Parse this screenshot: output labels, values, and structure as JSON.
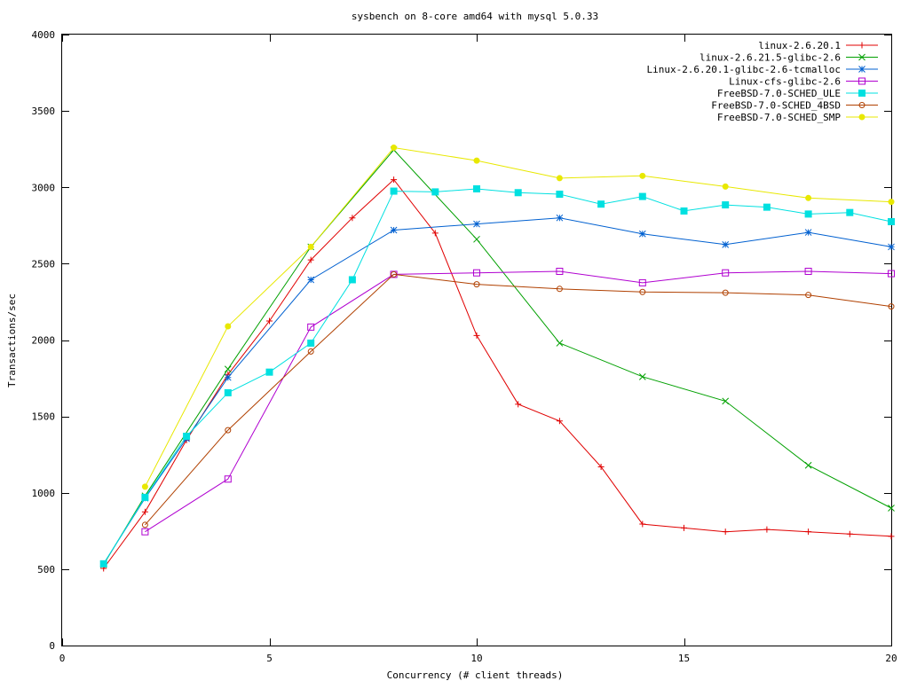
{
  "chart_data": {
    "type": "line",
    "title": "sysbench on 8-core amd64 with mysql 5.0.33",
    "xlabel": "Concurrency (# client threads)",
    "ylabel": "Transactions/sec",
    "xlim": [
      0,
      20
    ],
    "ylim": [
      0,
      4000
    ],
    "xticks": [
      0,
      5,
      10,
      15,
      20
    ],
    "yticks": [
      0,
      500,
      1000,
      1500,
      2000,
      2500,
      3000,
      3500,
      4000
    ],
    "grid": false,
    "legend_position": "top-right",
    "series": [
      {
        "name": "linux-2.6.20.1",
        "color": "#e00000",
        "marker": "plus",
        "x": [
          1,
          2,
          3,
          4,
          5,
          6,
          7,
          8,
          9,
          10,
          11,
          12,
          13,
          14,
          15,
          16,
          17,
          18,
          19,
          20
        ],
        "y": [
          505,
          875,
          1345,
          1775,
          2125,
          2525,
          2800,
          3050,
          2700,
          2030,
          1580,
          1470,
          1170,
          795,
          770,
          745,
          760,
          745,
          730,
          715
        ]
      },
      {
        "name": "linux-2.6.21.5-glibc-2.6",
        "color": "#00a000",
        "marker": "cross",
        "x": [
          1,
          2,
          4,
          6,
          8,
          10,
          12,
          14,
          16,
          18,
          20
        ],
        "y": [
          530,
          980,
          1810,
          2610,
          3245,
          2660,
          1980,
          1760,
          1600,
          1180,
          900
        ]
      },
      {
        "name": "Linux-2.6.20.1-glibc-2.6-tcmalloc",
        "color": "#0060d0",
        "marker": "star",
        "x": [
          1,
          2,
          3,
          4,
          6,
          8,
          10,
          12,
          14,
          16,
          18,
          20
        ],
        "y": [
          535,
          965,
          1355,
          1755,
          2395,
          2720,
          2760,
          2800,
          2695,
          2625,
          2705,
          2610
        ]
      },
      {
        "name": "Linux-cfs-glibc-2.6",
        "color": "#b000d0",
        "marker": "square-open",
        "x": [
          2,
          4,
          6,
          8,
          10,
          12,
          14,
          16,
          18,
          20
        ],
        "y": [
          745,
          1090,
          2085,
          2430,
          2440,
          2450,
          2375,
          2440,
          2450,
          2435
        ]
      },
      {
        "name": "FreeBSD-7.0-SCHED_ULE",
        "color": "#00e0e0",
        "marker": "square-filled",
        "x": [
          1,
          2,
          3,
          4,
          5,
          6,
          7,
          8,
          9,
          10,
          11,
          12,
          13,
          14,
          15,
          16,
          17,
          18,
          19,
          20
        ],
        "y": [
          535,
          970,
          1370,
          1655,
          1790,
          1980,
          2395,
          2975,
          2970,
          2990,
          2965,
          2955,
          2890,
          2940,
          2845,
          2885,
          2870,
          2825,
          2835,
          2775
        ]
      },
      {
        "name": "FreeBSD-7.0-SCHED_4BSD",
        "color": "#b04000",
        "marker": "circle-open",
        "x": [
          2,
          4,
          6,
          8,
          10,
          12,
          14,
          16,
          18,
          20
        ],
        "y": [
          790,
          1410,
          1925,
          2430,
          2365,
          2335,
          2315,
          2310,
          2295,
          2220
        ]
      },
      {
        "name": "FreeBSD-7.0-SCHED_SMP",
        "color": "#e8e800",
        "marker": "circle-filled",
        "x": [
          2,
          4,
          6,
          8,
          10,
          12,
          14,
          16,
          18,
          20
        ],
        "y": [
          1040,
          2090,
          2610,
          3260,
          3175,
          3060,
          3075,
          3005,
          2930,
          2905
        ]
      }
    ]
  }
}
